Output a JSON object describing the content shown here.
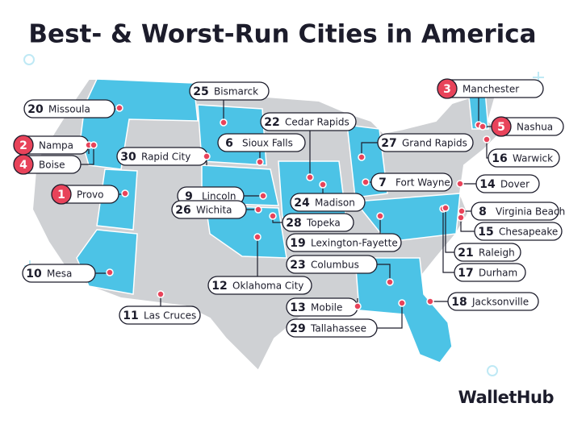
{
  "title": "Best- & Worst-Run Cities in America",
  "cities": [
    {
      "rank": 1,
      "name": "Provo"
    },
    {
      "rank": 2,
      "name": "Nampa"
    },
    {
      "rank": 3,
      "name": "Manchester"
    },
    {
      "rank": 4,
      "name": "Boise"
    },
    {
      "rank": 5,
      "name": "Nashua"
    },
    {
      "rank": 6,
      "name": "Sioux Falls"
    },
    {
      "rank": 7,
      "name": "Fort Wayne"
    },
    {
      "rank": 8,
      "name": "Virginia Beach"
    },
    {
      "rank": 9,
      "name": "Lincoln"
    },
    {
      "rank": 10,
      "name": "Mesa"
    },
    {
      "rank": 11,
      "name": "Las Cruces"
    },
    {
      "rank": 12,
      "name": "Oklahoma City"
    },
    {
      "rank": 13,
      "name": "Mobile"
    },
    {
      "rank": 14,
      "name": "Dover"
    },
    {
      "rank": 15,
      "name": "Chesapeake"
    },
    {
      "rank": 16,
      "name": "Warwick"
    },
    {
      "rank": 17,
      "name": "Durham"
    },
    {
      "rank": 18,
      "name": "Jacksonville"
    },
    {
      "rank": 19,
      "name": "Lexington-Fayette"
    },
    {
      "rank": 20,
      "name": "Missoula"
    },
    {
      "rank": 21,
      "name": "Raleigh"
    },
    {
      "rank": 22,
      "name": "Cedar Rapids"
    },
    {
      "rank": 23,
      "name": "Columbus"
    },
    {
      "rank": 24,
      "name": "Madison"
    },
    {
      "rank": 25,
      "name": "Bismarck"
    },
    {
      "rank": 26,
      "name": "Wichita"
    },
    {
      "rank": 27,
      "name": "Grand Rapids"
    },
    {
      "rank": 28,
      "name": "Topeka"
    },
    {
      "rank": 29,
      "name": "Tallahassee"
    },
    {
      "rank": 30,
      "name": "Rapid City"
    }
  ],
  "brand": "WalletHub"
}
